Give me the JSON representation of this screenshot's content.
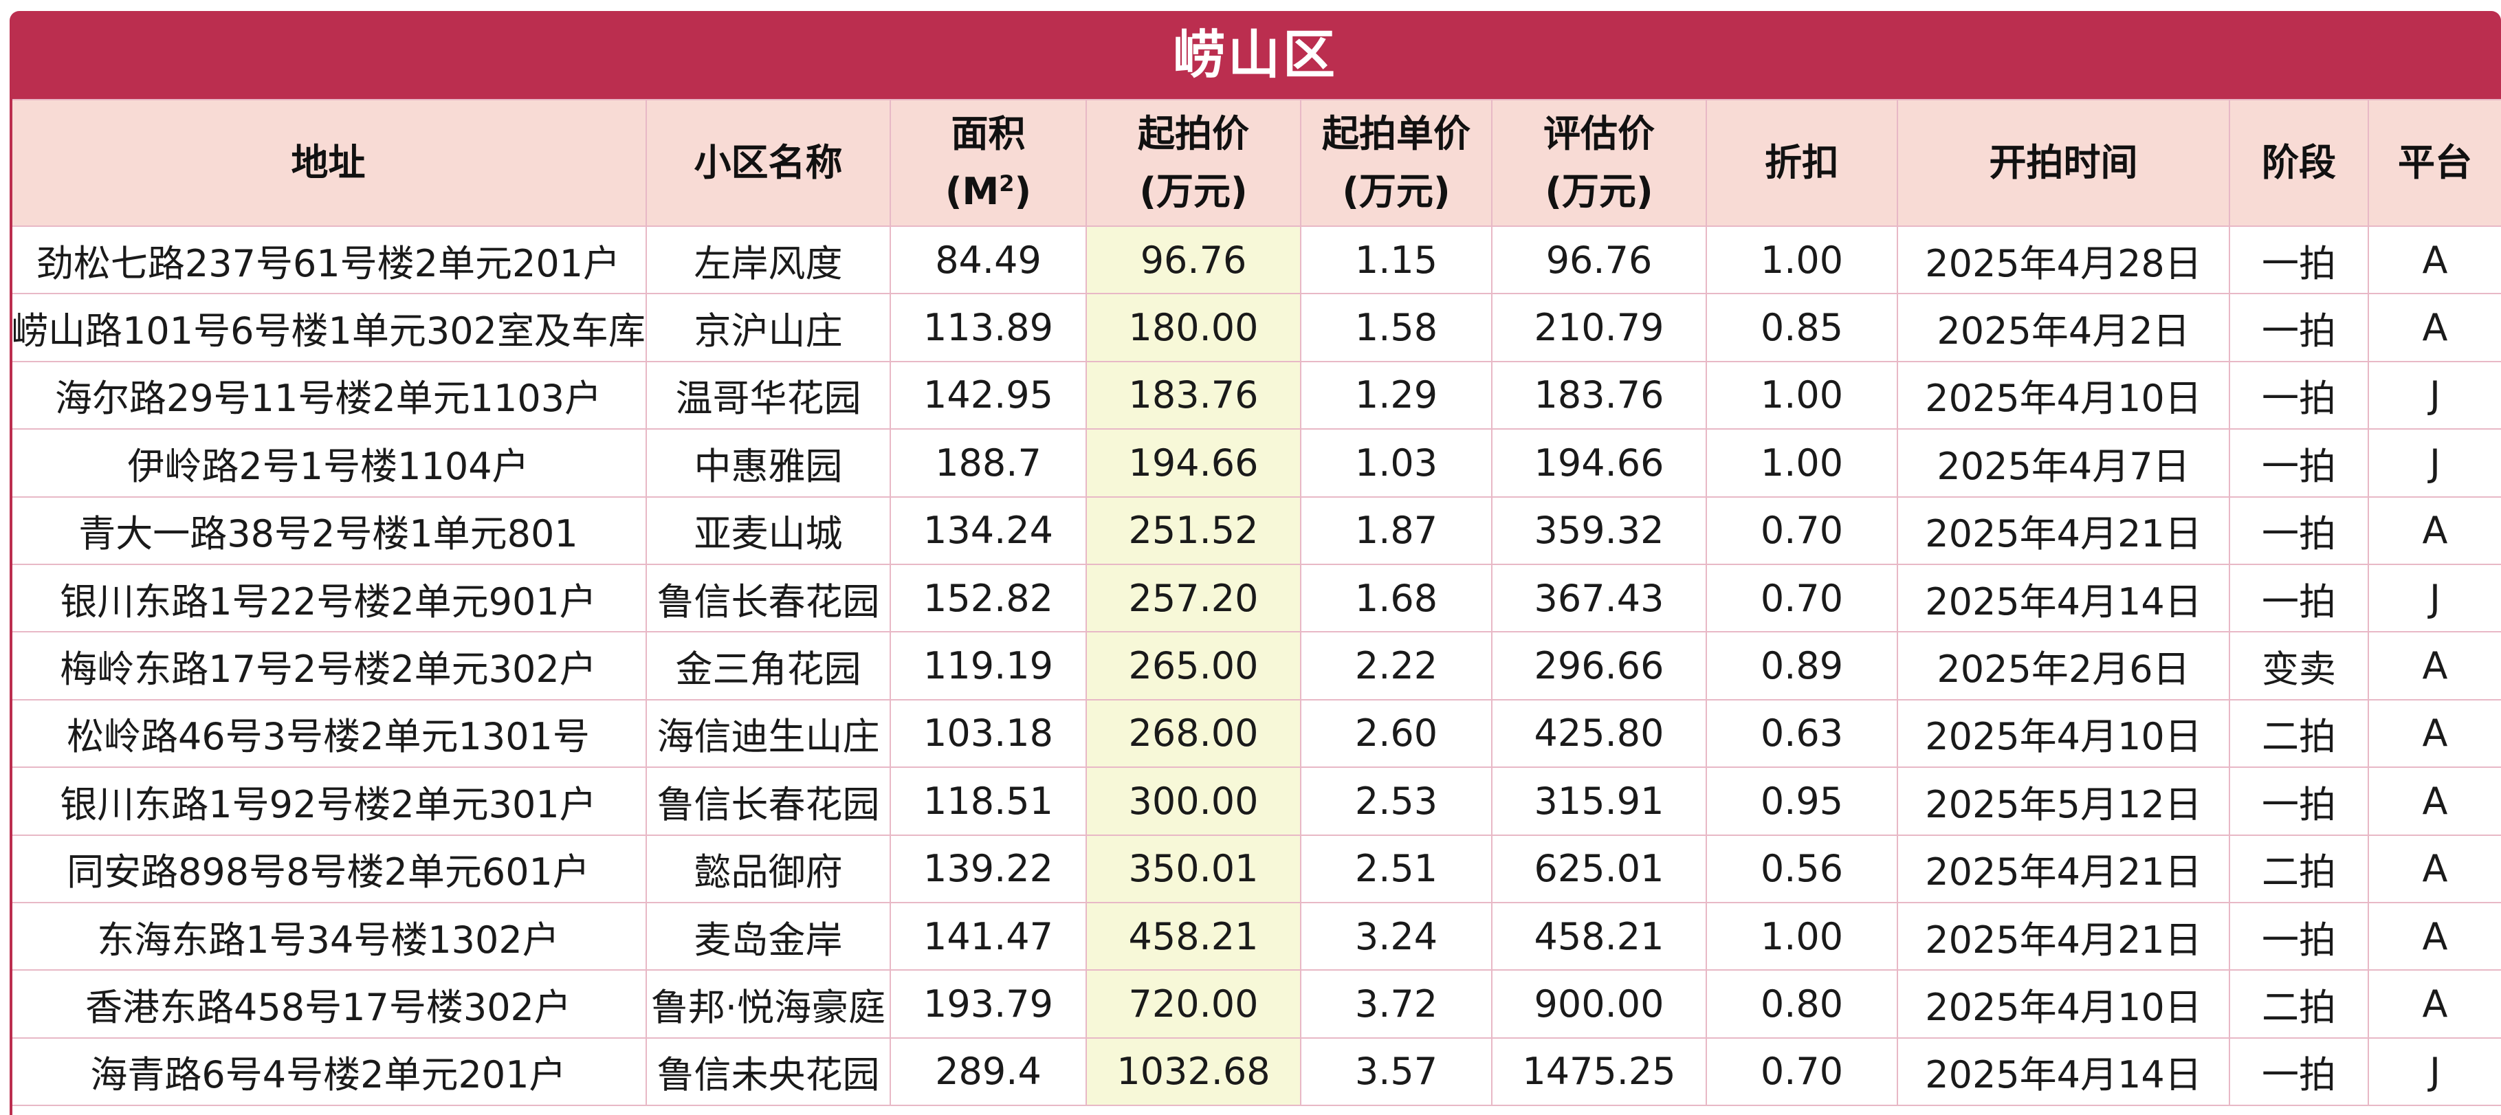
{
  "title": "崂山区",
  "headers": [
    {
      "line1": "地址",
      "line2": ""
    },
    {
      "line1": "小区名称",
      "line2": ""
    },
    {
      "line1": "面积",
      "line2": "(M",
      "sup": "2",
      "close": ")"
    },
    {
      "line1": "起拍价",
      "line2": "(万元)"
    },
    {
      "line1": "起拍单价",
      "line2": "(万元)"
    },
    {
      "line1": "评估价",
      "line2": "(万元)"
    },
    {
      "line1": "折扣",
      "line2": ""
    },
    {
      "line1": "开拍时间",
      "line2": ""
    },
    {
      "line1": "阶段",
      "line2": ""
    },
    {
      "line1": "平台",
      "line2": ""
    }
  ],
  "rows": [
    [
      "劲松七路237号61号楼2单元201户",
      "左岸风度",
      "84.49",
      "96.76",
      "1.15",
      "96.76",
      "1.00",
      "2025年4月28日",
      "一拍",
      "A"
    ],
    [
      "崂山路101号6号楼1单元302室及车库",
      "京沪山庄",
      "113.89",
      "180.00",
      "1.58",
      "210.79",
      "0.85",
      "2025年4月2日",
      "一拍",
      "A"
    ],
    [
      "海尔路29号11号楼2单元1103户",
      "温哥华花园",
      "142.95",
      "183.76",
      "1.29",
      "183.76",
      "1.00",
      "2025年4月10日",
      "一拍",
      "J"
    ],
    [
      "伊岭路2号1号楼1104户",
      "中惠雅园",
      "188.7",
      "194.66",
      "1.03",
      "194.66",
      "1.00",
      "2025年4月7日",
      "一拍",
      "J"
    ],
    [
      "青大一路38号2号楼1单元801",
      "亚麦山城",
      "134.24",
      "251.52",
      "1.87",
      "359.32",
      "0.70",
      "2025年4月21日",
      "一拍",
      "A"
    ],
    [
      "银川东路1号22号楼2单元901户",
      "鲁信长春花园",
      "152.82",
      "257.20",
      "1.68",
      "367.43",
      "0.70",
      "2025年4月14日",
      "一拍",
      "J"
    ],
    [
      "梅岭东路17号2号楼2单元302户",
      "金三角花园",
      "119.19",
      "265.00",
      "2.22",
      "296.66",
      "0.89",
      "2025年2月6日",
      "变卖",
      "A"
    ],
    [
      "松岭路46号3号楼2单元1301号",
      "海信迪生山庄",
      "103.18",
      "268.00",
      "2.60",
      "425.80",
      "0.63",
      "2025年4月10日",
      "二拍",
      "A"
    ],
    [
      "银川东路1号92号楼2单元301户",
      "鲁信长春花园",
      "118.51",
      "300.00",
      "2.53",
      "315.91",
      "0.95",
      "2025年5月12日",
      "一拍",
      "A"
    ],
    [
      "同安路898号8号楼2单元601户",
      "懿品御府",
      "139.22",
      "350.01",
      "2.51",
      "625.01",
      "0.56",
      "2025年4月21日",
      "二拍",
      "A"
    ],
    [
      "东海东路1号34号楼1302户",
      "麦岛金岸",
      "141.47",
      "458.21",
      "3.24",
      "458.21",
      "1.00",
      "2025年4月21日",
      "一拍",
      "A"
    ],
    [
      "香港东路458号17号楼302户",
      "鲁邦·悦海豪庭",
      "193.79",
      "720.00",
      "3.72",
      "900.00",
      "0.80",
      "2025年4月10日",
      "二拍",
      "A"
    ],
    [
      "海青路6号4号楼2单元201户",
      "鲁信未央花园",
      "289.4",
      "1032.68",
      "3.57",
      "1475.25",
      "0.70",
      "2025年4月14日",
      "一拍",
      "J"
    ]
  ],
  "colors": {
    "title_bg": "#bb2e4f",
    "header_bg": "#f8dbd5",
    "price_column_bg": "#f7f8d8",
    "grid": "#e8b8c6"
  }
}
